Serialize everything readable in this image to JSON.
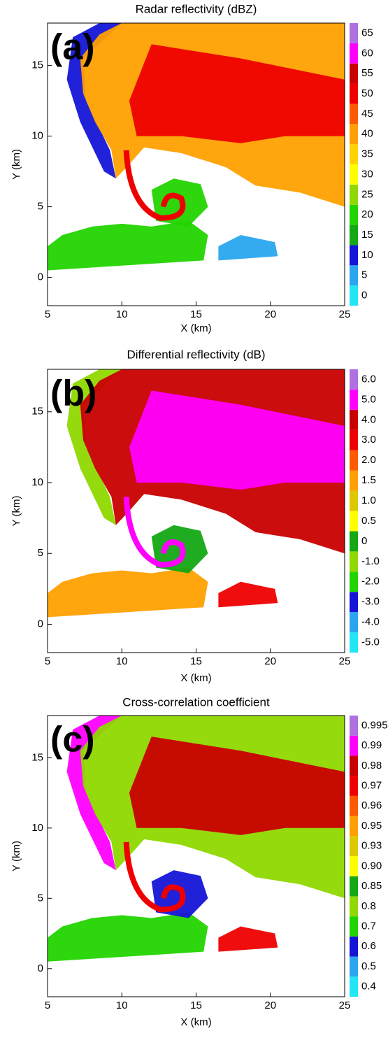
{
  "chart_data": [
    {
      "type": "heatmap",
      "title": "Radar reflectivity (dBZ)",
      "panel_label": "(a)",
      "x_label": "X (km)",
      "y_label": "Y (km)",
      "xlim": [
        5,
        25
      ],
      "ylim": [
        -2,
        18
      ],
      "xticks": [
        5,
        10,
        15,
        20,
        25
      ],
      "yticks": [
        0,
        5,
        10,
        15
      ],
      "colorbar": {
        "labels": [
          "0",
          "5",
          "10",
          "15",
          "20",
          "25",
          "30",
          "35",
          "40",
          "45",
          "50",
          "55",
          "60",
          "65"
        ],
        "colors": [
          "#22e5f5",
          "#2aa6ee",
          "#1515d8",
          "#14a814",
          "#22d400",
          "#8fd800",
          "#ffff00",
          "#ffd200",
          "#ffa000",
          "#ff5a00",
          "#ee0000",
          "#c80000",
          "#ff00ff",
          "#b070e0"
        ]
      }
    },
    {
      "type": "heatmap",
      "title": "Differential reflectivity (dB)",
      "panel_label": "(b)",
      "x_label": "X (km)",
      "y_label": "Y (km)",
      "xlim": [
        5,
        25
      ],
      "ylim": [
        -2,
        18
      ],
      "xticks": [
        5,
        10,
        15,
        20,
        25
      ],
      "yticks": [
        0,
        5,
        10,
        15
      ],
      "colorbar": {
        "labels": [
          "-5.0",
          "-4.0",
          "-3.0",
          "-2.0",
          "-1.0",
          "0",
          "0.5",
          "1.0",
          "1.5",
          "2.0",
          "3.0",
          "4.0",
          "5.0",
          "6.0"
        ],
        "colors": [
          "#22e5f5",
          "#2aa6ee",
          "#1515d8",
          "#22d400",
          "#8fd800",
          "#14a814",
          "#ffff00",
          "#ddc800",
          "#ffa000",
          "#ff5a00",
          "#ee0000",
          "#c80000",
          "#ff00ff",
          "#b070e0"
        ]
      }
    },
    {
      "type": "heatmap",
      "title": "Cross-correlation coefficient",
      "panel_label": "(c)",
      "x_label": "X (km)",
      "y_label": "Y (km)",
      "xlim": [
        5,
        25
      ],
      "ylim": [
        -2,
        18
      ],
      "xticks": [
        5,
        10,
        15,
        20,
        25
      ],
      "yticks": [
        0,
        5,
        10,
        15
      ],
      "colorbar": {
        "labels": [
          "0.4",
          "0.5",
          "0.6",
          "0.7",
          "0.8",
          "0.85",
          "0.90",
          "0.93",
          "0.95",
          "0.96",
          "0.97",
          "0.98",
          "0.99",
          "0.995"
        ],
        "colors": [
          "#22e5f5",
          "#2aa6ee",
          "#1515d8",
          "#22d400",
          "#8fd800",
          "#14a814",
          "#ffff00",
          "#ddc800",
          "#ffa000",
          "#ff5a00",
          "#ee0000",
          "#c80000",
          "#ff00ff",
          "#b070e0"
        ]
      }
    }
  ]
}
